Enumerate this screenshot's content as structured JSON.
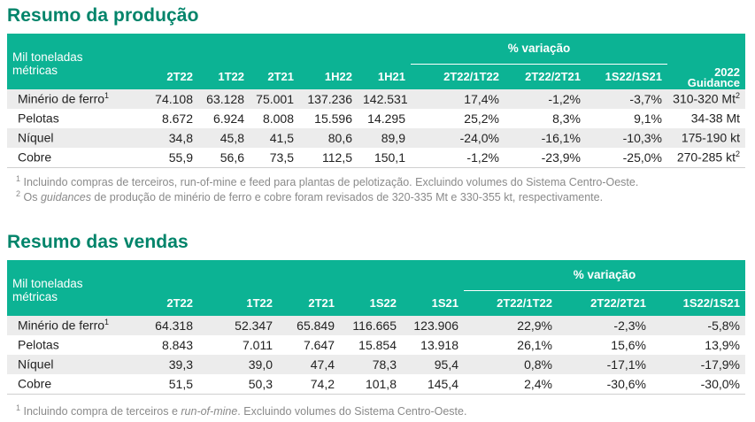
{
  "production": {
    "title": "Resumo da produção",
    "header_label_line1": "Mil toneladas",
    "header_label_line2": "métricas",
    "variation_title": "% variação",
    "columns": [
      "2T22",
      "1T22",
      "2T21",
      "1H22",
      "1H21",
      "2T22/1T22",
      "2T22/2T21",
      "1S22/1S21"
    ],
    "guidance_line1": "2022",
    "guidance_line2": "Guidance",
    "rows": [
      {
        "label": "Minério de ferro",
        "sup": "1",
        "values": [
          "74.108",
          "63.128",
          "75.001",
          "137.236",
          "142.531",
          "17,4%",
          "-1,2%",
          "-3,7%"
        ],
        "guidance": "310-320 Mt",
        "guidance_sup": "2"
      },
      {
        "label": "Pelotas",
        "sup": "",
        "values": [
          "8.672",
          "6.924",
          "8.008",
          "15.596",
          "14.295",
          "25,2%",
          "8,3%",
          "9,1%"
        ],
        "guidance": "34-38 Mt",
        "guidance_sup": ""
      },
      {
        "label": "Níquel",
        "sup": "",
        "values": [
          "34,8",
          "45,8",
          "41,5",
          "80,6",
          "89,9",
          "-24,0%",
          "-16,1%",
          "-10,3%"
        ],
        "guidance": "175-190 kt",
        "guidance_sup": ""
      },
      {
        "label": "Cobre",
        "sup": "",
        "values": [
          "55,9",
          "56,6",
          "73,5",
          "112,5",
          "150,1",
          "-1,2%",
          "-23,9%",
          "-25,0%"
        ],
        "guidance": "270-285 kt",
        "guidance_sup": "2"
      }
    ],
    "footnote1_num": "1",
    "footnote1": "Incluindo compras de terceiros, run-of-mine e feed para plantas de pelotização. Excluindo volumes do Sistema Centro-Oeste.",
    "footnote2_num": "2",
    "footnote2_pre": "Os ",
    "footnote2_italic": "guidances",
    "footnote2_post": " de produção de minério de ferro e cobre foram revisados de 320-335 Mt e 330-355 kt, respectivamente."
  },
  "sales": {
    "title": "Resumo das vendas",
    "header_label_line1": "Mil toneladas",
    "header_label_line2": "métricas",
    "variation_title": "% variação",
    "columns": [
      "2T22",
      "1T22",
      "2T21",
      "1S22",
      "1S21",
      "2T22/1T22",
      "2T22/2T21",
      "1S22/1S21"
    ],
    "rows": [
      {
        "label": "Minério de ferro",
        "sup": "1",
        "values": [
          "64.318",
          "52.347",
          "65.849",
          "116.665",
          "123.906",
          "22,9%",
          "-2,3%",
          "-5,8%"
        ]
      },
      {
        "label": "Pelotas",
        "sup": "",
        "values": [
          "8.843",
          "7.011",
          "7.647",
          "15.854",
          "13.918",
          "26,1%",
          "15,6%",
          "13,9%"
        ]
      },
      {
        "label": "Níquel",
        "sup": "",
        "values": [
          "39,3",
          "39,0",
          "47,4",
          "78,3",
          "95,4",
          "0,8%",
          "-17,1%",
          "-17,9%"
        ]
      },
      {
        "label": "Cobre",
        "sup": "",
        "values": [
          "51,5",
          "50,3",
          "74,2",
          "101,8",
          "145,4",
          "2,4%",
          "-30,6%",
          "-30,0%"
        ]
      }
    ],
    "footnote1_num": "1",
    "footnote1_pre": "Incluindo compra de terceiros e ",
    "footnote1_italic": "run-of-mine",
    "footnote1_post": ". Excluindo volumes do Sistema Centro-Oeste."
  }
}
